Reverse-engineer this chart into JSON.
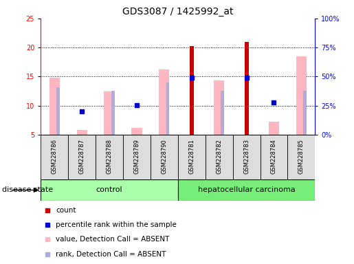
{
  "title": "GDS3087 / 1425992_at",
  "samples": [
    "GSM228786",
    "GSM228787",
    "GSM228788",
    "GSM228789",
    "GSM228790",
    "GSM228781",
    "GSM228782",
    "GSM228783",
    "GSM228784",
    "GSM228785"
  ],
  "ylim_left": [
    5,
    25
  ],
  "ylim_right": [
    0,
    100
  ],
  "yticks_left": [
    5,
    10,
    15,
    20,
    25
  ],
  "yticks_right": [
    0,
    25,
    50,
    75,
    100
  ],
  "ytick_labels_right": [
    "0%",
    "25%",
    "50%",
    "75%",
    "100%"
  ],
  "pink_bars": [
    14.8,
    5.8,
    12.4,
    6.2,
    16.2,
    null,
    14.3,
    null,
    7.2,
    18.5
  ],
  "red_bars": [
    null,
    null,
    null,
    null,
    null,
    20.3,
    null,
    21.0,
    null,
    null
  ],
  "blue_dots": [
    null,
    9.0,
    null,
    10.1,
    null,
    14.8,
    null,
    14.8,
    10.5,
    null
  ],
  "lavender_bars": [
    13.1,
    null,
    12.6,
    null,
    14.0,
    null,
    12.6,
    null,
    null,
    12.6
  ],
  "pink_color": "#FFB6C1",
  "red_color": "#CC0000",
  "blue_color": "#0000CC",
  "lavender_color": "#AAAADD",
  "control_color": "#AAFFAA",
  "carcinoma_color": "#77EE77",
  "title_fontsize": 10,
  "tick_fontsize": 7,
  "legend_fontsize": 7.5,
  "sample_fontsize": 6,
  "group_fontsize": 8
}
